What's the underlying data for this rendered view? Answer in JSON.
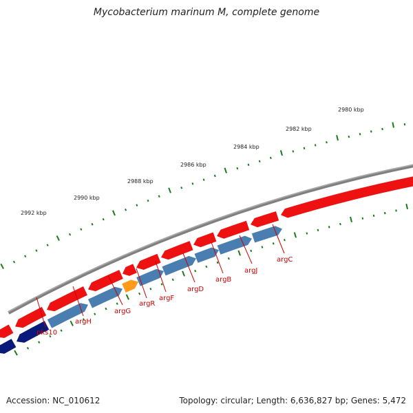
{
  "title": "Mycobacterium marinum M, complete genome",
  "footer": {
    "accession": "Accession: NC_010612",
    "topology": "Topology: circular; Length: 6,636,827 bp; Genes: 5,472"
  },
  "colors": {
    "backbone": "#808080",
    "forward_gene": "#ee1111",
    "reverse_gene": "#4a7eb0",
    "reverse_gene_dark": "#0a1a7a",
    "highlight_gene": "#ff9a1a",
    "tick": "#1a7a1a",
    "label": "#cc0000"
  },
  "scale": {
    "unit": "kbp",
    "ticks": [
      {
        "kbp": 2980,
        "label": "2980 kbp"
      },
      {
        "kbp": 2982,
        "label": "2982 kbp"
      },
      {
        "kbp": 2984,
        "label": "2984 kbp"
      },
      {
        "kbp": 2986,
        "label": "2986 kbp"
      },
      {
        "kbp": 2988,
        "label": "2988 kbp"
      },
      {
        "kbp": 2990,
        "label": "2990 kbp"
      },
      {
        "kbp": 2992,
        "label": "2992 kbp"
      }
    ]
  },
  "genes": [
    {
      "label": "pks10"
    },
    {
      "label": "argH"
    },
    {
      "label": "argG"
    },
    {
      "label": "argR"
    },
    {
      "label": "argF"
    },
    {
      "label": "argD"
    },
    {
      "label": "argB"
    },
    {
      "label": "argJ"
    },
    {
      "label": "argC"
    }
  ]
}
